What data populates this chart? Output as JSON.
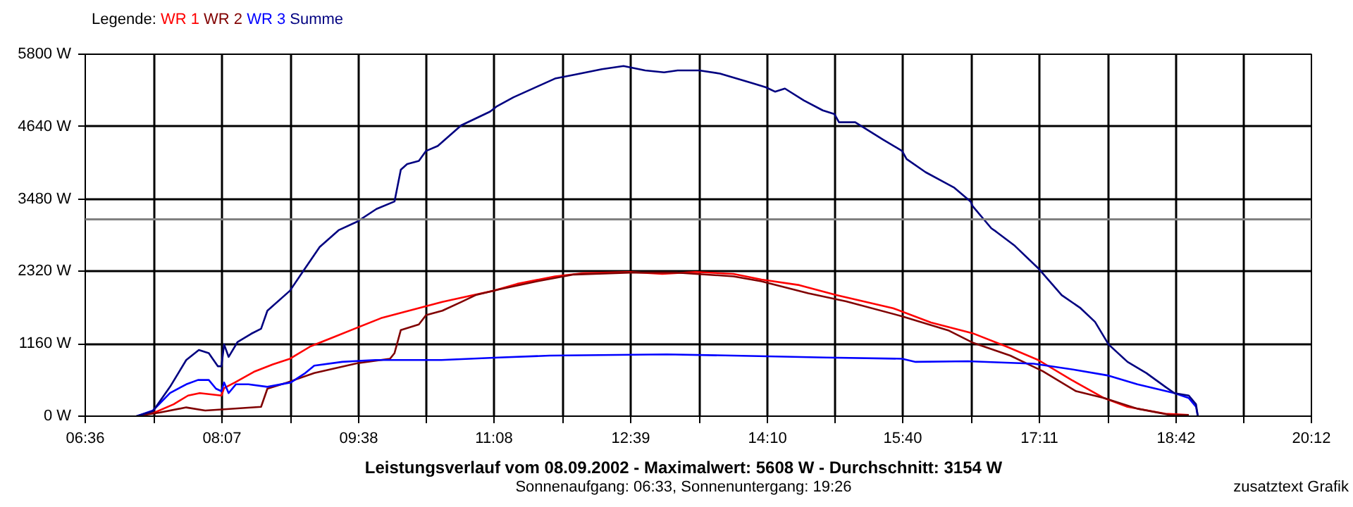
{
  "chart_data": {
    "type": "line",
    "title": "Leistungsverlauf vom 08.09.2002 - Maximalwert: 5608 W - Durchschnitt: 3154 W",
    "subtitle": "Sonnenaufgang: 06:33, Sonnenuntergang: 19:26",
    "legend_title": "Legende:",
    "annotations": [
      "zusatztext Grafik"
    ],
    "grid": true,
    "line_style": "solid",
    "xlim": [
      6.6,
      20.2
    ],
    "ylim": [
      0,
      5800
    ],
    "xticks": [
      {
        "value": 6.6,
        "label": "06:36"
      },
      {
        "value": 7.3583,
        "label": null
      },
      {
        "value": 8.1167,
        "label": "08:07"
      },
      {
        "value": 8.875,
        "label": null
      },
      {
        "value": 9.6333,
        "label": "09:38"
      },
      {
        "value": 10.3833,
        "label": null
      },
      {
        "value": 11.1333,
        "label": "11:08"
      },
      {
        "value": 11.8917,
        "label": null
      },
      {
        "value": 12.65,
        "label": "12:39"
      },
      {
        "value": 13.4083,
        "label": null
      },
      {
        "value": 14.1667,
        "label": "14:10"
      },
      {
        "value": 14.9167,
        "label": null
      },
      {
        "value": 15.6667,
        "label": "15:40"
      },
      {
        "value": 16.425,
        "label": null
      },
      {
        "value": 17.1833,
        "label": "17:11"
      },
      {
        "value": 17.9417,
        "label": null
      },
      {
        "value": 18.7,
        "label": "18:42"
      },
      {
        "value": 19.45,
        "label": null
      },
      {
        "value": 20.2,
        "label": "20:12"
      }
    ],
    "yticks": [
      {
        "value": 0,
        "label": "0 W"
      },
      {
        "value": 1160,
        "label": "1160 W"
      },
      {
        "value": 2320,
        "label": "2320 W"
      },
      {
        "value": 3480,
        "label": "3480 W"
      },
      {
        "value": 4640,
        "label": "4640 W"
      },
      {
        "value": 5800,
        "label": "5800 W"
      }
    ],
    "ref_lines": [
      {
        "axis": "y",
        "value": 3154,
        "color": "#808080"
      }
    ],
    "series": [
      {
        "name": "WR 1",
        "color": "#ff0000",
        "x": [
          7.17,
          7.37,
          7.58,
          7.74,
          7.87,
          8.11,
          8.14,
          8.26,
          8.47,
          8.68,
          8.87,
          9.1,
          9.36,
          9.62,
          9.88,
          10.19,
          10.56,
          10.87,
          11.13,
          11.39,
          11.81,
          12.12,
          12.64,
          13.0,
          13.37,
          13.79,
          14.1,
          14.52,
          14.93,
          15.56,
          15.98,
          16.44,
          16.81,
          17.17,
          17.54,
          17.9,
          18.16,
          18.58,
          18.84
        ],
        "values": [
          0,
          60,
          190,
          330,
          370,
          330,
          450,
          540,
          710,
          830,
          920,
          1120,
          1270,
          1420,
          1570,
          1690,
          1830,
          1930,
          2010,
          2120,
          2240,
          2290,
          2310,
          2280,
          2310,
          2280,
          2190,
          2100,
          1940,
          1730,
          1500,
          1330,
          1120,
          900,
          580,
          290,
          150,
          40,
          20
        ]
      },
      {
        "name": "WR 2",
        "color": "#800000",
        "x": [
          7.17,
          7.43,
          7.72,
          7.93,
          8.14,
          8.55,
          8.62,
          8.84,
          9.14,
          9.62,
          9.98,
          10.03,
          10.1,
          10.3,
          10.38,
          10.56,
          10.77,
          10.93,
          11.19,
          11.61,
          12.02,
          12.64,
          13.17,
          13.79,
          14.1,
          14.62,
          15.04,
          15.66,
          16.18,
          16.44,
          16.86,
          17.22,
          17.59,
          17.9,
          18.27,
          18.63,
          18.84
        ],
        "values": [
          0,
          60,
          140,
          90,
          110,
          150,
          440,
          540,
          690,
          850,
          920,
          1010,
          1380,
          1470,
          1620,
          1690,
          1830,
          1940,
          2030,
          2160,
          2270,
          2300,
          2300,
          2240,
          2160,
          1970,
          1840,
          1600,
          1370,
          1180,
          970,
          720,
          400,
          290,
          120,
          20,
          20
        ]
      },
      {
        "name": "WR 3",
        "color": "#0000ff",
        "x": [
          7.17,
          7.35,
          7.54,
          7.72,
          7.85,
          7.97,
          8.05,
          8.11,
          8.14,
          8.19,
          8.27,
          8.41,
          8.62,
          8.88,
          9.04,
          9.14,
          9.45,
          9.82,
          10.55,
          11.18,
          11.75,
          13.05,
          13.79,
          14.82,
          15.66,
          15.81,
          16.39,
          17.12,
          17.59,
          17.95,
          18.27,
          18.68,
          18.84,
          18.92,
          18.94
        ],
        "values": [
          0,
          90,
          370,
          510,
          580,
          580,
          440,
          400,
          540,
          370,
          510,
          510,
          470,
          540,
          690,
          810,
          870,
          900,
          900,
          940,
          970,
          990,
          970,
          940,
          920,
          870,
          880,
          840,
          740,
          650,
          510,
          370,
          290,
          150,
          0
        ]
      },
      {
        "name": "Summe",
        "color": "#000080",
        "x": [
          7.17,
          7.35,
          7.54,
          7.72,
          7.86,
          7.97,
          8.07,
          8.11,
          8.14,
          8.19,
          8.29,
          8.44,
          8.55,
          8.62,
          8.87,
          9.02,
          9.2,
          9.41,
          9.62,
          9.83,
          10.03,
          10.1,
          10.17,
          10.3,
          10.38,
          10.51,
          10.77,
          10.93,
          11.09,
          11.16,
          11.35,
          11.61,
          11.81,
          12.02,
          12.33,
          12.57,
          12.81,
          13.02,
          13.17,
          13.41,
          13.64,
          13.99,
          14.15,
          14.25,
          14.36,
          14.57,
          14.78,
          14.91,
          14.96,
          15.14,
          15.45,
          15.66,
          15.71,
          15.92,
          16.24,
          16.42,
          16.44,
          16.65,
          16.7,
          16.91,
          17.17,
          17.43,
          17.64,
          17.8,
          17.95,
          18.16,
          18.37,
          18.58,
          18.68,
          18.84,
          18.92,
          18.94
        ],
        "values": [
          0,
          80,
          470,
          900,
          1060,
          1010,
          800,
          800,
          1150,
          950,
          1190,
          1320,
          1400,
          1690,
          2010,
          2330,
          2710,
          2980,
          3120,
          3320,
          3440,
          3950,
          4040,
          4090,
          4250,
          4330,
          4660,
          4770,
          4880,
          4960,
          5110,
          5280,
          5410,
          5470,
          5560,
          5610,
          5540,
          5510,
          5540,
          5540,
          5490,
          5340,
          5270,
          5200,
          5250,
          5060,
          4900,
          4840,
          4710,
          4710,
          4430,
          4250,
          4120,
          3910,
          3660,
          3440,
          3370,
          3010,
          2960,
          2730,
          2370,
          1940,
          1730,
          1510,
          1150,
          870,
          690,
          470,
          370,
          330,
          190,
          0
        ]
      }
    ]
  }
}
